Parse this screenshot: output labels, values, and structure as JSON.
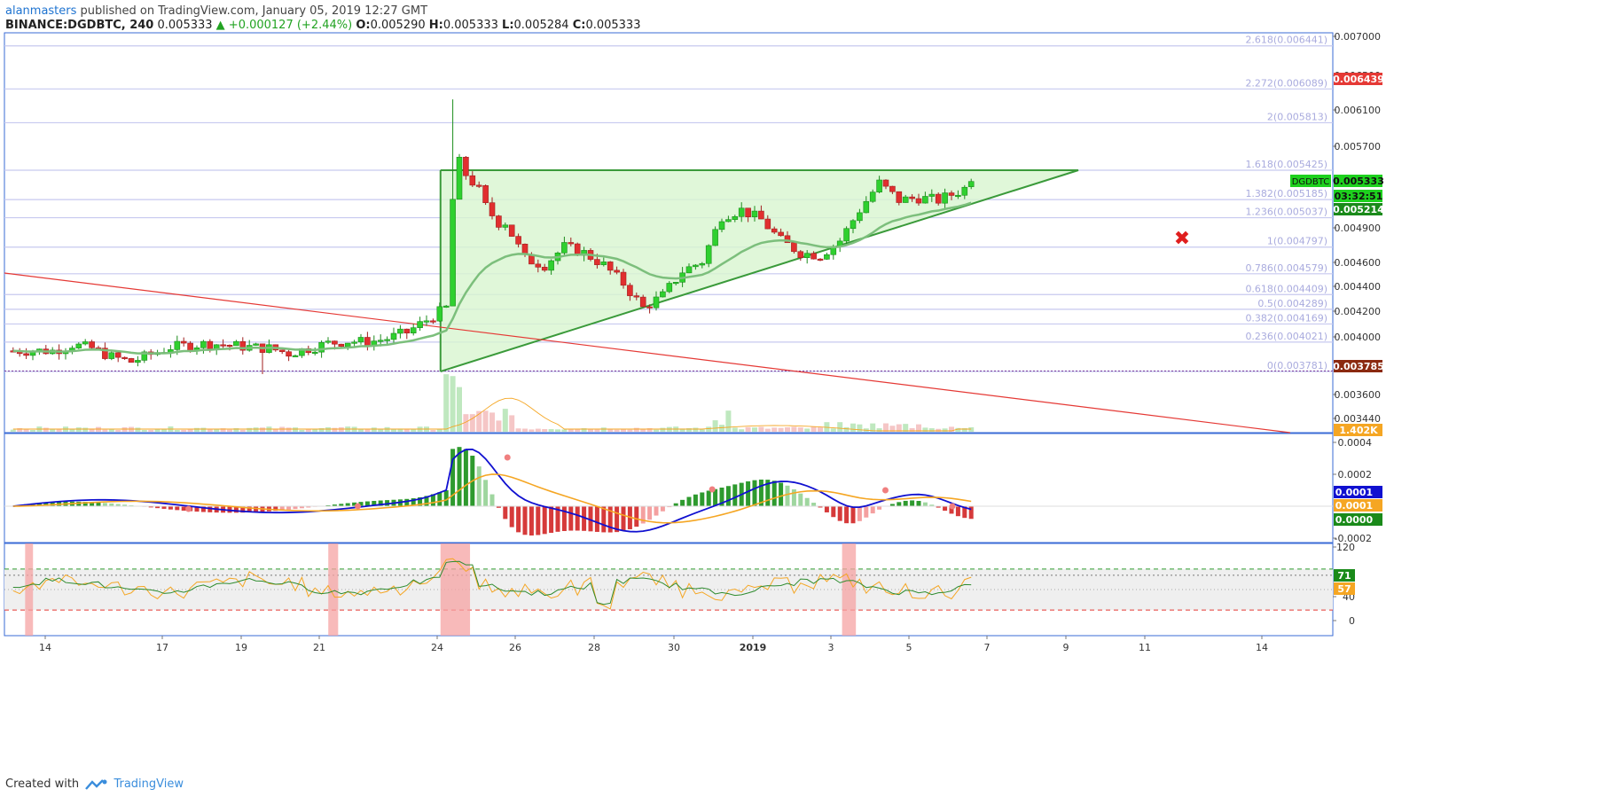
{
  "header": {
    "author": "alanmasters",
    "published_text": "published on TradingView.com, January 05, 2019 12:27 GMT",
    "symbol": "BINANCE:DGDBTC, 240",
    "last": "0.005333",
    "change": "▲ +0.000127 (+2.44%)",
    "o_label": "O:",
    "o_value": "0.005290",
    "h_label": "H:",
    "h_value": "0.005333",
    "l_label": "L:",
    "l_value": "0.005284",
    "c_label": "C:",
    "c_value": "0.005333"
  },
  "footer": {
    "created_with": "Created with",
    "brand": "TradingView"
  },
  "colors": {
    "up": "#2fd02f",
    "down": "#e12f2f",
    "ma": "#7cbf7c",
    "fib": "#c7c9ef",
    "triangle_fill": "#d8f5d0",
    "triangle_stroke": "#3a9a3a",
    "downtrend": "#e53935",
    "macd": "#1010d0",
    "signal": "#f5a623",
    "rsi": "#2e8b2e",
    "stoch": "#f5a623"
  },
  "annotations": {
    "invalid_mark": "✖"
  },
  "chart_data": [
    {
      "type": "candlestick",
      "title": "BINANCE:DGDBTC, 240",
      "xlabel": "",
      "ylabel": "",
      "ylim": [
        0.0033,
        0.007
      ],
      "x_ticks": [
        "14",
        "17",
        "19",
        "21",
        "24",
        "26",
        "28",
        "30",
        "2019",
        "3",
        "5",
        "7",
        "9",
        "11",
        "14"
      ],
      "y_ticks": [
        "0.007000",
        "0.006500",
        "0.006100",
        "0.005700",
        "0.004900",
        "0.004600",
        "0.004400",
        "0.004200",
        "0.004000",
        "0.003600",
        "0.003440"
      ],
      "price_tags": [
        {
          "label": "",
          "value": "0.006439",
          "color": "#e53935"
        },
        {
          "label": "DGDBTC",
          "value": "0.005333",
          "color": "#1ed11e"
        },
        {
          "label": "",
          "value": "03:32:51",
          "color": "#1ed11e"
        },
        {
          "label": "",
          "value": "0.005214",
          "color": "#1a8a1a"
        },
        {
          "label": "",
          "value": "0.003785",
          "color": "#8b2a10"
        },
        {
          "label": "",
          "value": "1.402K",
          "color": "#f5a623"
        }
      ],
      "fib_levels": [
        {
          "label": "2.618(0.006441)",
          "value": 0.006441
        },
        {
          "label": "2.272(0.006089)",
          "value": 0.006089
        },
        {
          "label": "2(0.005813)",
          "value": 0.005813
        },
        {
          "label": "1.618(0.005425)",
          "value": 0.005425
        },
        {
          "label": "1.382(0.005185)",
          "value": 0.005185
        },
        {
          "label": "1.236(0.005037)",
          "value": 0.005037
        },
        {
          "label": "1(0.004797)",
          "value": 0.004797
        },
        {
          "label": "0.786(0.004579)",
          "value": 0.004579
        },
        {
          "label": "0.618(0.004409)",
          "value": 0.004409
        },
        {
          "label": "0.5(0.004289)",
          "value": 0.004289
        },
        {
          "label": "0.382(0.004169)",
          "value": 0.004169
        },
        {
          "label": "0.236(0.004021)",
          "value": 0.004021
        },
        {
          "label": "0(0.003781)",
          "value": 0.003781
        }
      ],
      "close_path": [
        [
          "Jan 13",
          0.00395
        ],
        [
          "Jan 13 12h",
          0.004
        ],
        [
          "Jan 14",
          0.00397
        ],
        [
          "Jan 14 12h",
          0.0039
        ],
        [
          "Jan 15",
          0.00386
        ],
        [
          "Jan 16",
          0.00398
        ],
        [
          "Jan 17",
          0.00401
        ],
        [
          "Jan 18",
          0.00398
        ],
        [
          "Jan 18 12h",
          0.00397
        ],
        [
          "Jan 19",
          0.00393
        ],
        [
          "Jan 19 12h",
          0.00397
        ],
        [
          "Jan 20",
          0.00401
        ],
        [
          "Jan 20 12h",
          0.00403
        ],
        [
          "Jan 21",
          0.00402
        ],
        [
          "Jan 21 12h",
          0.00405
        ],
        [
          "Jan 22",
          0.0041
        ],
        [
          "Jan 22 12h",
          0.0042
        ],
        [
          "Jan 23",
          0.0043
        ],
        [
          "Jan 23 04h",
          0.0052
        ],
        [
          "Jan 23 08h",
          0.00545
        ],
        [
          "Jan 23 16h",
          0.00535
        ],
        [
          "Jan 24",
          0.0051
        ],
        [
          "Jan 24 12h",
          0.005
        ],
        [
          "Jan 25",
          0.0047
        ],
        [
          "Jan 25 12h",
          0.00465
        ],
        [
          "Jan 26",
          0.0048
        ],
        [
          "Jan 26 12h",
          0.00475
        ],
        [
          "Jan 27",
          0.00465
        ],
        [
          "Jan 27 12h",
          0.0045
        ],
        [
          "Jan 28",
          0.0043
        ],
        [
          "Jan 28 12h",
          0.0044
        ],
        [
          "Jan 29",
          0.0046
        ],
        [
          "Jan 29 12h",
          0.00468
        ],
        [
          "Jan 30",
          0.00505
        ],
        [
          "Jan 30 12h",
          0.0051
        ],
        [
          "Jan 31",
          0.00502
        ],
        [
          "Jan 31 12h",
          0.00485
        ],
        [
          "Jan 1",
          0.00475
        ],
        [
          "Jan 1 12h",
          0.00473
        ],
        [
          "Jan 2",
          0.00485
        ],
        [
          "Jan 2 12h",
          0.0051
        ],
        [
          "Jan 3",
          0.00532
        ],
        [
          "Jan 3 12h",
          0.00518
        ],
        [
          "Jan 4",
          0.0052
        ],
        [
          "Jan 4 12h",
          0.00518
        ],
        [
          "Jan 5",
          0.00525
        ],
        [
          "Jan 5 12h",
          0.005333
        ]
      ],
      "triangle": {
        "bottom": 0.003781,
        "top": 0.005425,
        "start": "Jan 22 20h",
        "end": "Jan 8 16h"
      }
    },
    {
      "type": "line",
      "title": "MACD",
      "ylim": [
        -0.0002,
        0.0004
      ],
      "y_ticks": [
        "0.0004",
        "0.0002",
        "-0.0002"
      ],
      "value_tags": [
        {
          "value": "0.0001",
          "color": "#1010d0"
        },
        {
          "value": "0.0001",
          "color": "#f5a623"
        },
        {
          "value": "0.0000",
          "color": "#1a8a1a"
        }
      ]
    },
    {
      "type": "line",
      "title": "RSI / Stochastic",
      "ylim": [
        0,
        120
      ],
      "y_ticks": [
        "120",
        "40",
        "0"
      ],
      "value_tags": [
        {
          "value": "71",
          "color": "#1a8a1a"
        },
        {
          "value": "57",
          "color": "#f5a623"
        }
      ]
    }
  ]
}
